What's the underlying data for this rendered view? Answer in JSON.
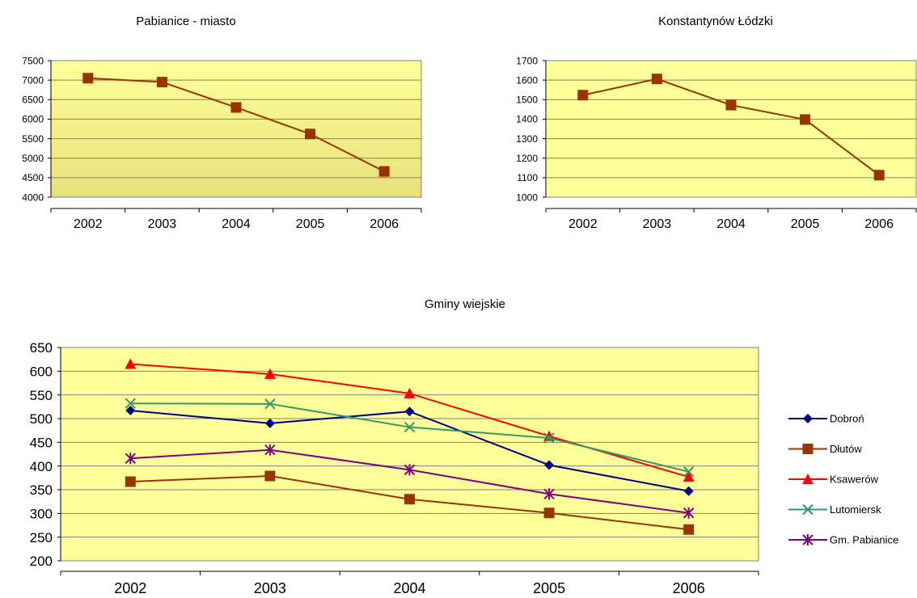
{
  "chart_data": [
    {
      "type": "line",
      "title": "Pabianice - miasto",
      "categories": [
        "2002",
        "2003",
        "2004",
        "2005",
        "2006"
      ],
      "ylim": [
        4000,
        7500
      ],
      "yticks": [
        "7500",
        "7000",
        "6500",
        "6000",
        "5500",
        "5000",
        "4500",
        "4000"
      ],
      "grid": true,
      "series": [
        {
          "values": [
            7050,
            6950,
            6300,
            5620,
            4660
          ],
          "color": "#993300",
          "marker": "square"
        }
      ]
    },
    {
      "type": "line",
      "title": "Konstantynów Łódzki",
      "categories": [
        "2002",
        "2003",
        "2004",
        "2005",
        "2006"
      ],
      "ylim": [
        1000,
        1700
      ],
      "yticks": [
        "1700",
        "1600",
        "1500",
        "1400",
        "1300",
        "1200",
        "1100",
        "1000"
      ],
      "grid": true,
      "series": [
        {
          "values": [
            1523,
            1606,
            1472,
            1398,
            1113
          ],
          "color": "#993300",
          "marker": "square"
        }
      ]
    },
    {
      "type": "line",
      "title": "Gminy wiejskie",
      "categories": [
        "2002",
        "2003",
        "2004",
        "2005",
        "2006"
      ],
      "ylim": [
        200,
        650
      ],
      "yticks": [
        "650",
        "600",
        "550",
        "500",
        "450",
        "400",
        "350",
        "300",
        "250",
        "200"
      ],
      "grid": true,
      "legend_position": "right",
      "series": [
        {
          "name": "Dobroń",
          "values": [
            517,
            490,
            515,
            402,
            347
          ],
          "color": "#000080",
          "marker": "diamond"
        },
        {
          "name": "Dłutów",
          "values": [
            367,
            379,
            330,
            301,
            266
          ],
          "color": "#993300",
          "marker": "square"
        },
        {
          "name": "Ksawerów",
          "values": [
            615,
            594,
            553,
            463,
            377
          ],
          "color": "#ff0000",
          "marker": "triangle"
        },
        {
          "name": "Lutomiersk",
          "values": [
            532,
            531,
            482,
            459,
            388
          ],
          "color": "#339966",
          "marker": "x"
        },
        {
          "name": "Gm. Pabianice",
          "values": [
            416,
            434,
            392,
            341,
            301
          ],
          "color": "#800080",
          "marker": "star"
        }
      ]
    }
  ]
}
